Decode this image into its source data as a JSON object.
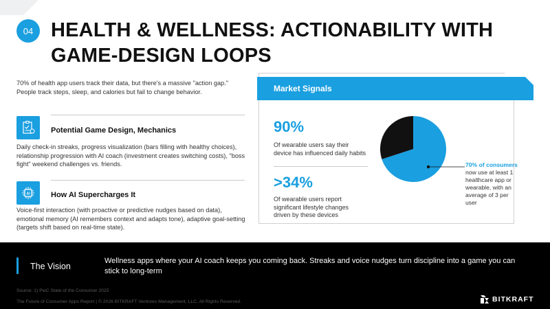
{
  "section_number": "04",
  "title_line1": "HEALTH & WELLNESS: ACTIONABILITY WITH",
  "title_line2": "GAME-DESIGN LOOPS",
  "intro": "70% of health app users track their data, but there's a massive \"action gap.\" People track steps, sleep, and calories but fail to change behavior.",
  "features": [
    {
      "icon": "checklist-icon",
      "heading": "Potential Game Design, Mechanics",
      "body": "Daily check-in streaks, progress visualization (bars filling with healthy choices), relationship progression with AI coach (investment creates switching costs), \"boss fight\" weekend challenges vs. friends."
    },
    {
      "icon": "ai-chip-icon",
      "heading": "How AI Supercharges It",
      "body": "Voice-first interaction (with proactive or predictive nudges based on data), emotional memory (AI remembers context and adapts tone), adaptive goal-setting (targets shift based on real-time state)."
    }
  ],
  "market_signals": {
    "title": "Market Signals",
    "stats": [
      {
        "value": "90%",
        "label": "Of wearable users say their device has influenced daily habits"
      },
      {
        "value": ">34%",
        "label": "Of wearable users report significant lifestyle changes driven by these devices"
      }
    ],
    "callout_highlight": "70% of consumers",
    "callout_rest": " now use at least 1 healthcare app or wearable, with an average of 3 per user"
  },
  "pie_data": {
    "type": "pie",
    "slices": [
      {
        "value": 70,
        "color": "#1a9fe0"
      },
      {
        "value": 30,
        "color": "#111111"
      }
    ]
  },
  "vision": {
    "title": "The Vision",
    "text": "Wellness apps where your AI coach keeps you coming back. Streaks and voice nudges turn discipline into a game you can stick to long-term"
  },
  "source": "Source: 1) PwC State of the Consumer 2025",
  "copyright": "The Future of Consumer Apps Report | © 2026 BITKRAFT Ventures Management, LLC. All Rights Reserved.",
  "logo_text": "BITKRAFT",
  "colors": {
    "accent": "#1a9fe0",
    "dark": "#000000"
  }
}
